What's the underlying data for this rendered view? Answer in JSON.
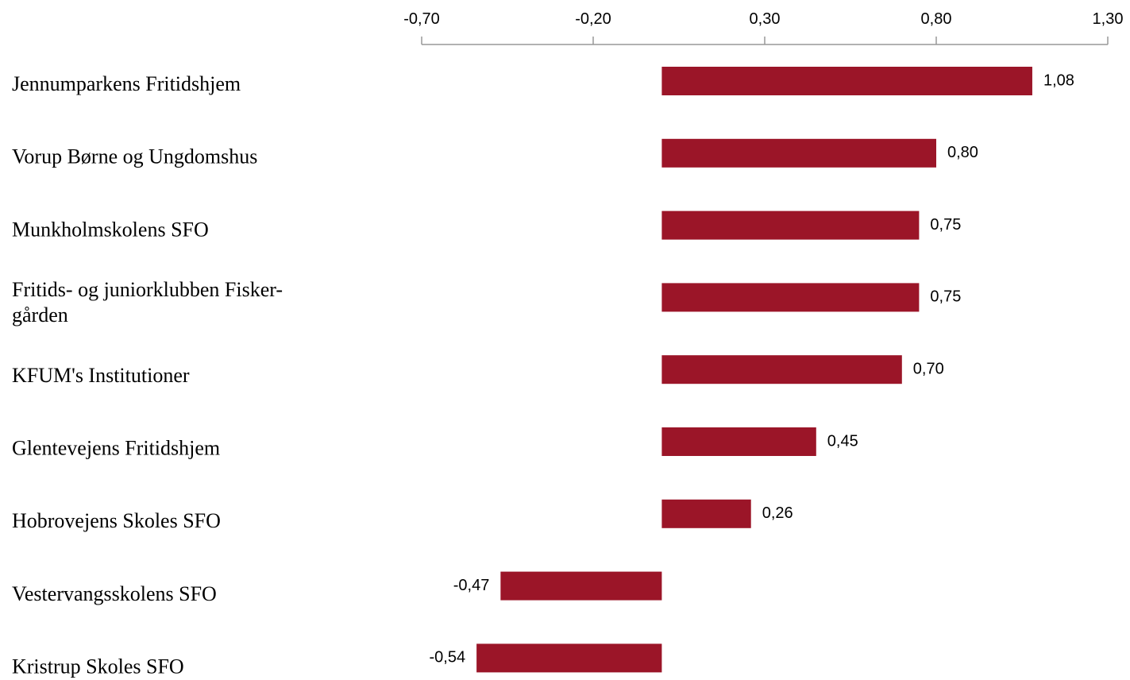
{
  "chart_data": {
    "type": "bar",
    "orientation": "horizontal",
    "categories": [
      "Jennumparkens Fritidshjem",
      "Vorup Børne og Ungdomshus",
      "Munkholmskolens SFO",
      "Fritids- og juniorklubben Fisker-\ngården",
      "KFUM's Institutioner",
      "Glentevejens Fritidshjem",
      "Hobrovejens Skoles SFO",
      "Vestervangsskolens SFO",
      "Kristrup Skoles SFO"
    ],
    "values": [
      1.08,
      0.8,
      0.75,
      0.75,
      0.7,
      0.45,
      0.26,
      -0.47,
      -0.54
    ],
    "value_labels": [
      "1,08",
      "0,80",
      "0,75",
      "0,75",
      "0,70",
      "0,45",
      "0,26",
      "-0,47",
      "-0,54"
    ],
    "color": "#9b1528",
    "xlim": [
      -0.7,
      1.3
    ],
    "xticks": [
      {
        "value": -0.7,
        "label": "-0,70"
      },
      {
        "value": -0.2,
        "label": "-0,20"
      },
      {
        "value": 0.3,
        "label": "0,30"
      },
      {
        "value": 0.8,
        "label": "0,80"
      },
      {
        "value": 1.3,
        "label": "1,30"
      }
    ]
  }
}
